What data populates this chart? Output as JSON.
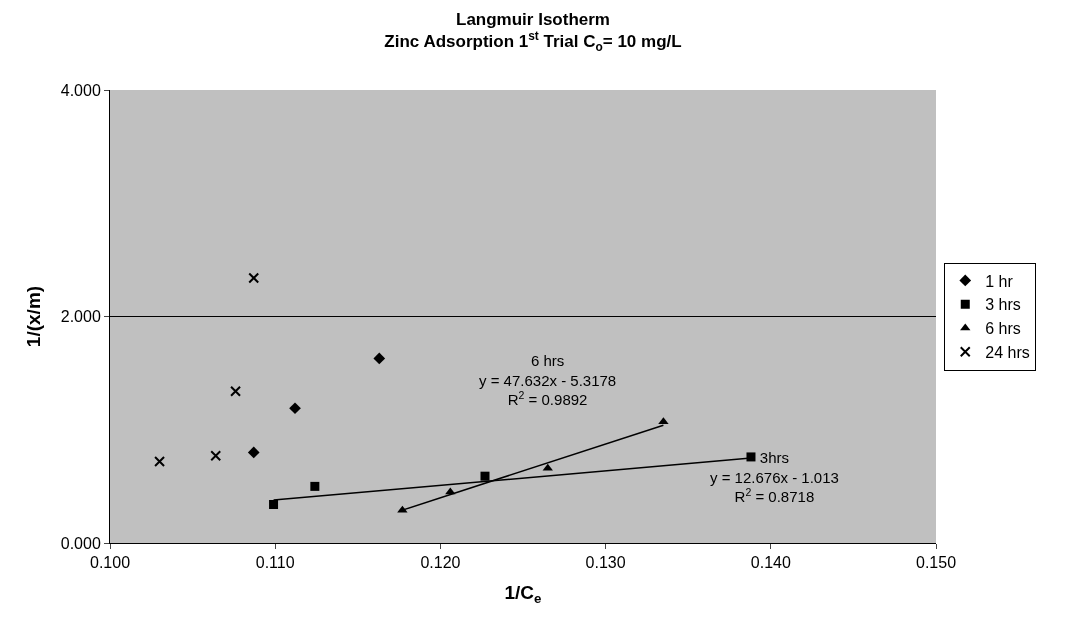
{
  "chart_data": {
    "type": "scatter",
    "title": "Langmuir Isotherm",
    "subtitle": "Zinc Adsorption 1$^{st}$ Trial C$_{o}$= 10 mg/L",
    "xlabel": "1/C$_{e}$",
    "ylabel": "1/(x/m)",
    "xlim": [
      0.1,
      0.15
    ],
    "xticks": [
      {
        "value": 0.1,
        "label": "0.100"
      },
      {
        "value": 0.11,
        "label": "0.110"
      },
      {
        "value": 0.12,
        "label": "0.120"
      },
      {
        "value": 0.13,
        "label": "0.130"
      },
      {
        "value": 0.14,
        "label": "0.140"
      },
      {
        "value": 0.15,
        "label": "0.150"
      }
    ],
    "ylim": [
      0,
      4
    ],
    "yticks": [
      {
        "value": 0,
        "label": "0.000"
      },
      {
        "value": 2,
        "label": "2.000"
      },
      {
        "value": 4,
        "label": "4.000"
      }
    ],
    "grid": "y",
    "legend": "right",
    "series": [
      {
        "name": "1 hr",
        "color": "#000000",
        "marker": "diamond",
        "x": [
          0.1087,
          0.1112,
          0.1163
        ],
        "values": [
          0.8,
          1.19,
          1.63
        ]
      },
      {
        "name": "3 hrs",
        "color": "#000000",
        "marker": "square",
        "x": [
          0.1099,
          0.1124,
          0.1227,
          0.1388
        ],
        "values": [
          0.34,
          0.5,
          0.59,
          0.76
        ]
      },
      {
        "name": "6 hrs",
        "color": "#000000",
        "marker": "triangle",
        "x": [
          0.1177,
          0.1206,
          0.1265,
          0.1335
        ],
        "values": [
          0.29,
          0.45,
          0.66,
          1.07
        ]
      },
      {
        "name": "24 hrs",
        "color": "#000000",
        "marker": "cross",
        "x": [
          0.103,
          0.1064,
          0.1076,
          0.1087
        ],
        "values": [
          0.72,
          0.77,
          1.34,
          2.34
        ]
      },
      {
        "type": "line",
        "color": "#000000",
        "marker": "none",
        "x": [
          0.1177,
          0.1335
        ],
        "values": [
          0.29,
          1.04
        ]
      },
      {
        "type": "line",
        "color": "#000000",
        "marker": "none",
        "x": [
          0.1099,
          0.1388
        ],
        "values": [
          0.38,
          0.75
        ]
      }
    ],
    "annotations": [
      "6 hrs\ny = 47.632x - 5.3178\nR$^{2}$ = 0.9892",
      "3hrs\ny = 12.676x - 1.013\nR$^{2}$ = 0.8718"
    ]
  }
}
